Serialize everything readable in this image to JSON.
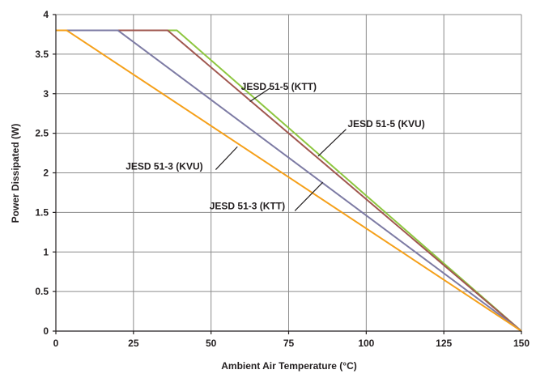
{
  "chart_data": {
    "type": "line",
    "xlabel": "Ambient Air Temperature (°C)",
    "ylabel": "Power Dissipated (W)",
    "xlim": [
      0,
      150
    ],
    "ylim": [
      0,
      4
    ],
    "xticks": [
      0,
      25,
      50,
      75,
      100,
      125,
      150
    ],
    "yticks": [
      0,
      0.5,
      1,
      1.5,
      2,
      2.5,
      3,
      3.5,
      4
    ],
    "xtick_labels": [
      "0",
      "25",
      "50",
      "75",
      "100",
      "125",
      "150"
    ],
    "ytick_labels": [
      "0",
      "0.5",
      "1",
      "1.5",
      "2",
      "2.5",
      "3",
      "3.5",
      "4"
    ],
    "grid": true,
    "series": [
      {
        "name": "JESD 51-5 (KTT)",
        "color": "#8dc63f",
        "x": [
          0,
          39,
          150
        ],
        "y": [
          3.8,
          3.8,
          0
        ]
      },
      {
        "name": "JESD 51-5 (KVU)",
        "color": "#a0574f",
        "x": [
          0,
          36,
          150
        ],
        "y": [
          3.8,
          3.8,
          0
        ]
      },
      {
        "name": "JESD 51-3 (KVU)",
        "color": "#7d7ba4",
        "x": [
          0,
          20,
          150
        ],
        "y": [
          3.8,
          3.8,
          0
        ]
      },
      {
        "name": "JESD 51-3 (KTT)",
        "color": "#f5a01a",
        "x": [
          0,
          3.5,
          150
        ],
        "y": [
          3.8,
          3.8,
          0
        ]
      }
    ],
    "annotations": [
      {
        "text": "JESD 51-5 (KTT)",
        "anchor": "end",
        "tx": 84,
        "ty": 3.05,
        "lx1": 69,
        "ly1": 3.07,
        "lx2": 62.5,
        "ly2": 2.9
      },
      {
        "text": "JESD 51-5 (KVU)",
        "anchor": "start",
        "tx": 94,
        "ty": 2.58,
        "lx1": 93.5,
        "ly1": 2.55,
        "lx2": 84.5,
        "ly2": 2.21
      },
      {
        "text": "JESD 51-3 (KVU)",
        "anchor": "start",
        "tx": 22.5,
        "ty": 2.04,
        "lx1": 51.5,
        "ly1": 2.04,
        "lx2": 58.5,
        "ly2": 2.33
      },
      {
        "text": "JESD 51-3 (KTT)",
        "anchor": "start",
        "tx": 49.5,
        "ty": 1.54,
        "lx1": 77,
        "ly1": 1.52,
        "lx2": 86,
        "ly2": 1.88
      }
    ]
  }
}
